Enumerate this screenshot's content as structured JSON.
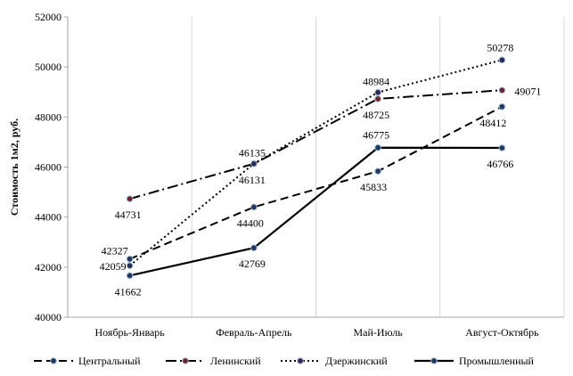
{
  "chart_data": {
    "type": "line",
    "title": "",
    "xlabel": "",
    "ylabel": "Стоимость 1м2, руб.",
    "ylim": [
      40000,
      52000
    ],
    "yticks": [
      40000,
      42000,
      44000,
      46000,
      48000,
      50000,
      52000
    ],
    "categories": [
      "Ноябрь-Январь",
      "Февраль-Апрель",
      "Май-Июль",
      "Август-Октябрь"
    ],
    "grid": "vertical",
    "legend_position": "bottom",
    "series": [
      {
        "name": "Центральный",
        "values": [
          42327,
          44400,
          45833,
          48412
        ],
        "labels": [
          "42327",
          "44400",
          "45833",
          "48412"
        ],
        "style": "dashed",
        "marker_color": "#1f3a5f"
      },
      {
        "name": "Ленинский",
        "values": [
          44731,
          46131,
          48725,
          49071
        ],
        "labels": [
          "44731",
          "46131",
          "48725",
          "49071"
        ],
        "style": "dash-dot",
        "marker_color": "#7a1f1f"
      },
      {
        "name": "Дзержинский",
        "values": [
          42059,
          46135,
          48984,
          50278
        ],
        "labels": [
          "42059",
          "46135",
          "48984",
          "50278"
        ],
        "style": "dotted",
        "marker_color": "#2b2b5a"
      },
      {
        "name": "Промышленный",
        "values": [
          41662,
          42769,
          46775,
          46766
        ],
        "labels": [
          "41662",
          "42769",
          "46775",
          "46766"
        ],
        "style": "solid",
        "marker_color": "#1f3a5f"
      }
    ]
  }
}
